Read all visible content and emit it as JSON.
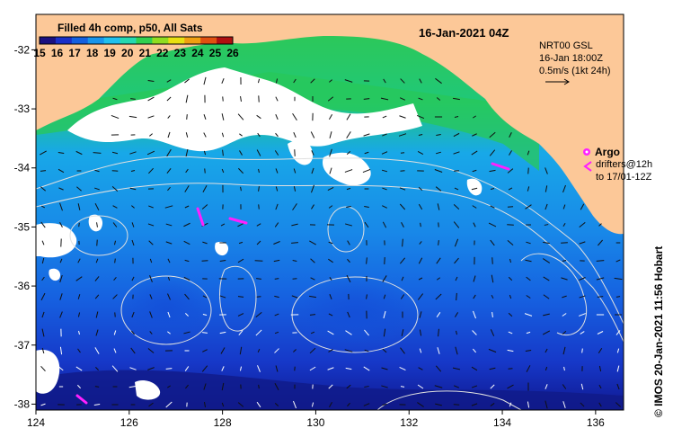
{
  "map": {
    "title": "Filled 4h comp, p50, All Sats",
    "date": "16-Jan-2021 04Z",
    "lon_range": [
      124,
      136.6
    ],
    "lat_range": [
      -38.1,
      -31.4
    ],
    "lon_ticks": [
      "124",
      "126",
      "128",
      "130",
      "132",
      "134",
      "136"
    ],
    "lat_ticks": [
      "-32",
      "-33",
      "-34",
      "-35",
      "-36",
      "-37",
      "-38"
    ],
    "colorbar": {
      "labels": [
        "15",
        "16",
        "17",
        "18",
        "19",
        "20",
        "21",
        "22",
        "23",
        "24",
        "25",
        "26"
      ],
      "colors": [
        "#1a1080",
        "#1a2fc8",
        "#1460e0",
        "#1895ec",
        "#20c0ee",
        "#25d8b0",
        "#30d050",
        "#90dd20",
        "#e8e010",
        "#f0a010",
        "#e05010",
        "#b01010"
      ]
    },
    "current_info": {
      "source": "NRT00 GSL",
      "time": "16-Jan 18:00Z",
      "scale": "0.5m/s (1kt 24h)"
    },
    "argo": {
      "label": "Argo",
      "drifters_line1": "drifters@12h",
      "drifters_line2": "to 17/01-12Z"
    },
    "credit": "© IMOS 20-Jan-2021 11:56 Hobart",
    "colors": {
      "land": "#fcc898",
      "cloud": "#ffffff",
      "drifter": "#ff20ff",
      "contour": "#e0e0e0"
    }
  }
}
